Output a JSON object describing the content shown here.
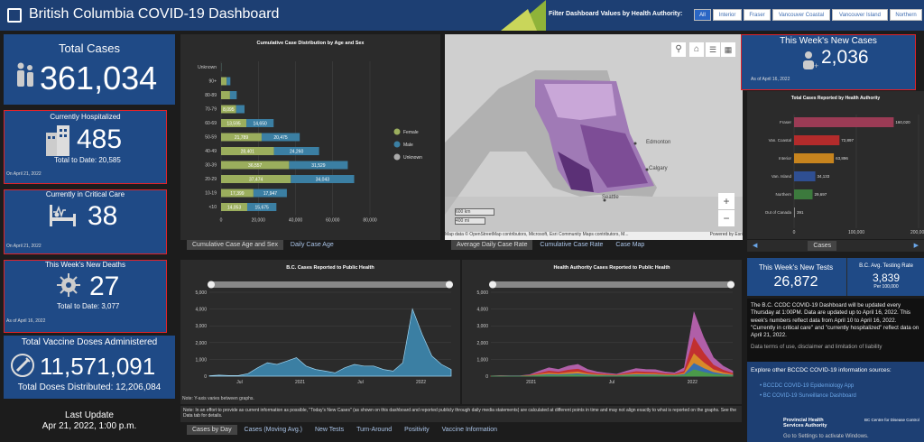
{
  "header": {
    "title": "British Columbia COVID-19 Dashboard",
    "filter_label": "Filter Dashboard Values by Health Authority:",
    "filters": [
      "All",
      "Interior",
      "Fraser",
      "Vancouver Coastal",
      "Vancouver Island",
      "Northern"
    ]
  },
  "total_cases": {
    "label": "Total Cases",
    "value": "361,034"
  },
  "hospitalized": {
    "label": "Currently Hospitalized",
    "value": "485",
    "to_date": "Total to Date: 20,585",
    "date": "On April 21, 2022"
  },
  "critical": {
    "label": "Currently in Critical Care",
    "value": "38",
    "date": "On April 21, 2022"
  },
  "deaths": {
    "label": "This Week's New Deaths",
    "value": "27",
    "to_date": "Total to Date: 3,077",
    "date": "As of April 16, 2022"
  },
  "vaccine": {
    "label": "Total Vaccine Doses Administered",
    "value": "11,571,091",
    "distributed": "Total Doses Distributed: 12,206,084"
  },
  "last_update": {
    "label": "Last Update",
    "value": "Apr 21, 2022, 1:00 p.m."
  },
  "age_tabs": [
    "Cumulative Case Age and Sex",
    "Daily Case Age"
  ],
  "map": {
    "attribution": "Map data © OpenStreetMap contributors, Microsoft, Esri Community Maps contributors, M...",
    "powered": "Powered by Esri",
    "scale1": "600 km",
    "scale2": "400 mi",
    "city_edmonton": "Edmonton",
    "city_calgary": "Calgary",
    "city_seattle": "Seattle",
    "zoom_in": "+",
    "zoom_out": "−"
  },
  "map_tabs": [
    "Average Daily Case Rate",
    "Cumulative Case Rate",
    "Case Map"
  ],
  "new_cases": {
    "label": "This Week's New Cases",
    "value": "2,036",
    "date": "As of April 16, 2022"
  },
  "ha_tabs_label": "Cases",
  "tests": {
    "label": "This Week's New Tests",
    "value": "26,872",
    "rate_label": "B.C. Avg. Testing Rate",
    "rate_value": "3,839",
    "rate_unit": "Per 100,000"
  },
  "info": {
    "text": "The B.C. CCDC COVID-19 Dashboard will be updated every Thursday at 1:00PM. Data are updated up to April 16, 2022. This week's numbers reflect data from April 10 to April 16, 2022. \"Currently in critical care\" and \"currently hospitalized\" reflect data on April 21, 2022.",
    "terms": "Data terms of use, disclaimer and limitation of liability",
    "explore": "Explore other BCCDC COVID-19 information sources:",
    "link1": "BCCDC COVID-19 Epidemiology App",
    "link2": "BC COVID-19 Surveillance Dashboard",
    "phsa": "Provincial Health Services Authority",
    "bccdc": "BC Centre for Disease Control",
    "windows": "Go to Settings to activate Windows."
  },
  "note_bottom": "Note: In an effort to provide as current information as possible, \"Today's New Cases\" (as shown on this dashboard and reported publicly through daily media statements) are calculated at different points in time and may not align exactly to what is reported on the graphs. See the Data tab for details.",
  "note_yaxis": "Note: Y-axis varies between graphs.",
  "bottom_tabs": [
    "Cases by Day",
    "Cases (Moving Avg.)",
    "New Tests",
    "Turn-Around",
    "Positivity",
    "Vaccine Information"
  ],
  "chart_data": [
    {
      "type": "bar",
      "title": "Cumulative Case Distribution by Age and Sex",
      "categories": [
        "Unknown",
        "90+",
        "80-89",
        "70-79",
        "60-69",
        "50-59",
        "40-49",
        "30-39",
        "20-29",
        "10-19",
        "<10"
      ],
      "series": [
        {
          "name": "Female",
          "color": "#9bae5d",
          "values": [
            100,
            3000,
            4800,
            8095,
            13595,
            21789,
            28401,
            36557,
            37474,
            17399,
            14053
          ]
        },
        {
          "name": "Male",
          "color": "#3b7fa3",
          "values": [
            100,
            2000,
            3600,
            4500,
            14650,
            20475,
            24260,
            31529,
            34043,
            17947,
            15675
          ]
        },
        {
          "name": "Unknown",
          "color": "#aaaaaa",
          "values": [
            0,
            0,
            0,
            0,
            0,
            0,
            0,
            0,
            0,
            0,
            0
          ]
        }
      ],
      "xticks": [
        "0",
        "20,000",
        "40,000",
        "60,000",
        "80,000"
      ],
      "xlim": [
        0,
        80000
      ]
    },
    {
      "type": "bar",
      "title": "Total Cases Reported by Health Authority",
      "categories": [
        "Fraser",
        "Van. Coastal",
        "Interior",
        "Van. Island",
        "Northern",
        "Out of Canada"
      ],
      "values": [
        160020,
        72897,
        63896,
        34133,
        29697,
        391
      ],
      "colors": [
        "#9b3b55",
        "#b32b2b",
        "#c7841e",
        "#2f4f92",
        "#3c7a3d",
        "#888888"
      ],
      "labels": [
        "160,020",
        "72,897",
        "63,896",
        "34,133",
        "29,697",
        "391"
      ],
      "xticks": [
        "0",
        "100,000",
        "200,000"
      ],
      "xlim": [
        0,
        200000
      ]
    },
    {
      "type": "area",
      "title": "B.C. Cases Reported to Public Health",
      "yticks": [
        "0",
        "1,000",
        "2,000",
        "3,000",
        "4,000",
        "5,000"
      ],
      "xticks": [
        "Jul",
        "2021",
        "Jul",
        "2022"
      ],
      "ylim": [
        0,
        5000
      ],
      "x": [
        0,
        4,
        8,
        12,
        16,
        20,
        24,
        28,
        32,
        36,
        40,
        44,
        48,
        52,
        56,
        60,
        64,
        68,
        72,
        76,
        80,
        84,
        88,
        92,
        96,
        100
      ],
      "y": [
        20,
        60,
        40,
        30,
        150,
        500,
        800,
        700,
        900,
        1100,
        600,
        400,
        300,
        200,
        500,
        700,
        600,
        600,
        400,
        300,
        800,
        4000,
        2500,
        1200,
        700,
        400
      ]
    },
    {
      "type": "area",
      "title": "Health Authority Cases Reported to Public Health",
      "yticks": [
        "0",
        "1,000",
        "2,000",
        "3,000",
        "4,000",
        "5,000"
      ],
      "xticks": [
        "2021",
        "Jul",
        "2022"
      ],
      "ylim": [
        0,
        5000
      ],
      "x": [
        0,
        4,
        8,
        12,
        16,
        20,
        24,
        28,
        32,
        36,
        40,
        44,
        48,
        52,
        56,
        60,
        64,
        68,
        72,
        76,
        80,
        84,
        88,
        92,
        96,
        100
      ],
      "y": [
        10,
        30,
        20,
        20,
        80,
        300,
        500,
        400,
        600,
        700,
        400,
        250,
        180,
        120,
        300,
        450,
        400,
        380,
        250,
        200,
        500,
        3800,
        2300,
        1100,
        600,
        300
      ]
    }
  ]
}
